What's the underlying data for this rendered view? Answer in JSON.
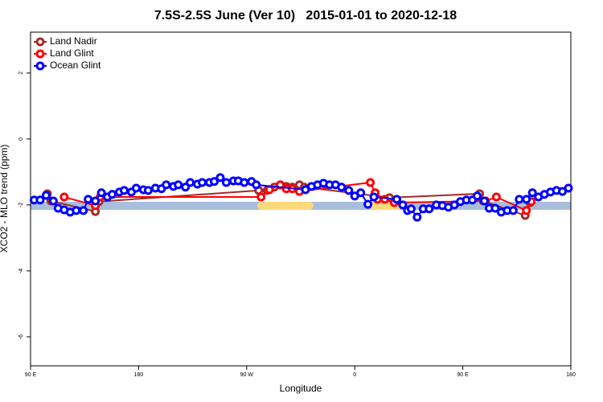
{
  "chart_data": {
    "type": "line",
    "title": "7.5S-2.5S June (Ver 10)   2015-01-01 to 2020-12-18",
    "x_label": "Longitude",
    "y_label": "XCO2 - MLO trend (ppm)",
    "xlim": [
      90,
      540
    ],
    "ylim": [
      -6.88,
      3.24
    ],
    "xticks": [
      {
        "value": 90,
        "label": "90 E"
      },
      180,
      {
        "value": 270,
        "label": "90 W"
      },
      {
        "value": 360,
        "label": "0"
      },
      {
        "value": 450,
        "label": "90 E"
      },
      {
        "value": 540,
        "label": "180"
      }
    ],
    "yticks": [
      -6,
      -4,
      -2,
      0,
      2
    ],
    "legend": "top-left",
    "series": [
      {
        "name": "Land Nadir",
        "color": "#a52a2a",
        "x": [
          104,
          107,
          144,
          147,
          280,
          287,
          293,
          298,
          303,
          308,
          314,
          318,
          389,
          464,
          467,
          502,
          506
        ],
        "values": [
          -1.66,
          -1.88,
          -2.2,
          -1.9,
          -1.56,
          -1.56,
          -1.46,
          -1.39,
          -1.44,
          -1.46,
          -1.39,
          -1.46,
          -1.78,
          -1.66,
          -1.88,
          -2.32,
          -1.93
        ]
      },
      {
        "name": "Land Glint",
        "color": "#ff0000",
        "x": [
          118,
          144,
          148,
          282,
          289,
          298,
          303,
          308,
          314,
          373,
          377,
          379,
          385,
          393,
          469,
          478,
          503,
          507
        ],
        "values": [
          -1.76,
          -2.02,
          -1.76,
          -1.76,
          -1.54,
          -1.39,
          -1.51,
          -1.51,
          -1.59,
          -1.32,
          -1.63,
          -1.83,
          -1.83,
          -1.93,
          -1.88,
          -1.76,
          -2.17,
          -1.9
        ]
      },
      {
        "name": "Ocean Glint",
        "color": "#0000ff",
        "x": [
          93,
          98,
          103,
          109,
          113,
          118,
          123,
          128,
          134,
          138,
          144,
          149,
          154,
          158,
          164,
          168,
          174,
          178,
          184,
          188,
          194,
          199,
          203,
          209,
          213,
          219,
          223,
          229,
          233,
          239,
          243,
          248,
          253,
          259,
          263,
          268,
          274,
          278,
          319,
          324,
          329,
          334,
          339,
          344,
          349,
          355,
          360,
          365,
          371,
          376,
          395,
          400,
          404,
          407,
          412,
          417,
          422,
          428,
          433,
          438,
          443,
          448,
          453,
          458,
          462,
          468,
          472,
          477,
          482,
          487,
          492,
          497,
          503,
          508,
          513,
          518,
          523,
          528,
          533,
          538
        ],
        "values": [
          -1.85,
          -1.85,
          -1.71,
          -1.88,
          -2.1,
          -2.15,
          -2.22,
          -2.17,
          -2.17,
          -1.83,
          -1.88,
          -1.63,
          -1.76,
          -1.68,
          -1.61,
          -1.56,
          -1.61,
          -1.49,
          -1.54,
          -1.56,
          -1.49,
          -1.51,
          -1.39,
          -1.44,
          -1.39,
          -1.46,
          -1.32,
          -1.37,
          -1.32,
          -1.32,
          -1.29,
          -1.17,
          -1.32,
          -1.27,
          -1.27,
          -1.32,
          -1.29,
          -1.39,
          -1.54,
          -1.44,
          -1.39,
          -1.34,
          -1.39,
          -1.39,
          -1.46,
          -1.56,
          -1.73,
          -1.63,
          -1.98,
          -1.76,
          -1.83,
          -2.0,
          -2.17,
          -2.12,
          -2.37,
          -2.12,
          -2.12,
          -2.0,
          -2.02,
          -2.07,
          -2.0,
          -1.9,
          -1.85,
          -1.85,
          -1.73,
          -1.88,
          -2.1,
          -2.1,
          -2.22,
          -2.17,
          -2.17,
          -1.83,
          -1.83,
          -1.63,
          -1.76,
          -1.68,
          -1.61,
          -1.56,
          -1.59,
          -1.49
        ]
      }
    ]
  }
}
